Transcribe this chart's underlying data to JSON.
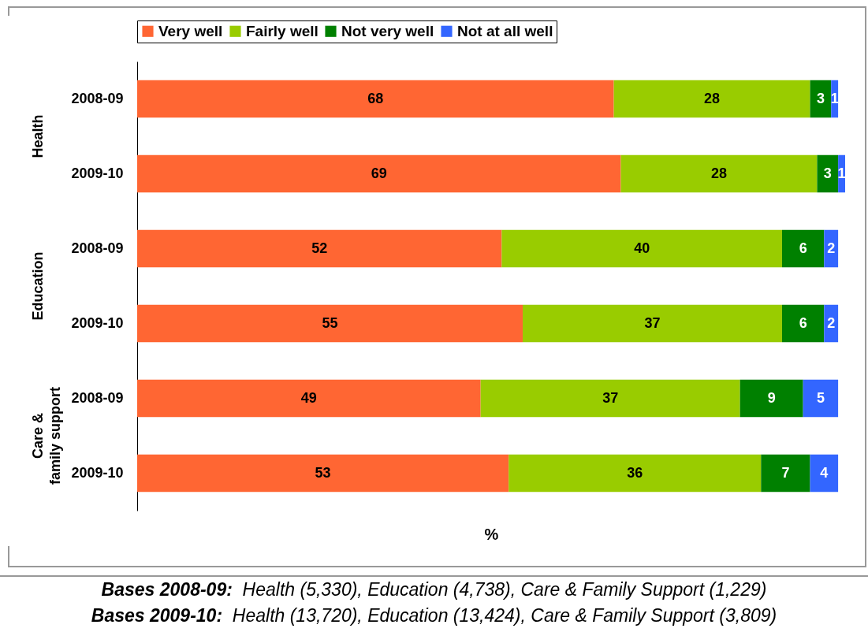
{
  "chart_data": {
    "type": "bar",
    "orientation": "horizontal",
    "stacked": true,
    "data_labels": true,
    "legend": "top",
    "grid": false,
    "tick_labels": "y",
    "xlabel": "%",
    "categories": [
      "2008-09",
      "2009-10",
      "2008-09",
      "2009-10",
      "2008-09",
      "2009-10"
    ],
    "series": [
      {
        "name": "Very well",
        "color": "#ff6633",
        "values": [
          68,
          69,
          52,
          55,
          49,
          53
        ]
      },
      {
        "name": "Fairly well",
        "color": "#99cc00",
        "values": [
          28,
          28,
          40,
          37,
          37,
          36
        ]
      },
      {
        "name": "Not very well",
        "color": "#008000",
        "values": [
          3,
          3,
          6,
          6,
          9,
          7
        ]
      },
      {
        "name": "Not at all well",
        "color": "#3366ff",
        "values": [
          1,
          1,
          2,
          2,
          5,
          4
        ]
      }
    ],
    "annotations": [
      "Health",
      "Education",
      "Care & family support",
      "Bases 2008-09:  Health (5,330), Education (4,738), Care & Family Support (1,229)",
      "Bases 2009-10:  Health (13,720), Education (13,424), Care & Family Support (3,809)"
    ]
  }
}
